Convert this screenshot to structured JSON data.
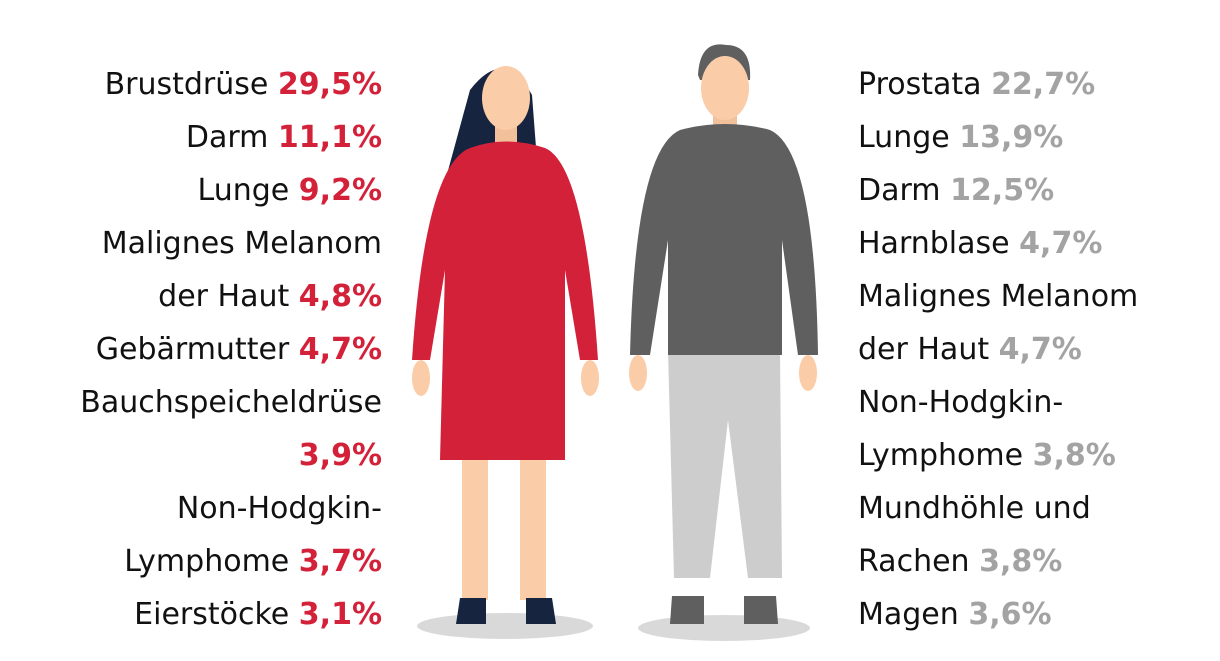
{
  "women": [
    {
      "label": [
        "Brustdrüse"
      ],
      "value": "29,5%"
    },
    {
      "label": [
        "Darm"
      ],
      "value": "11,1%"
    },
    {
      "label": [
        "Lunge"
      ],
      "value": "9,2%"
    },
    {
      "label": [
        "Malignes Melanom",
        "der Haut"
      ],
      "value": "4,8%"
    },
    {
      "label": [
        "Gebärmutter"
      ],
      "value": "4,7%"
    },
    {
      "label": [
        "Bauchspeicheldrüse"
      ],
      "value": "3,9%"
    },
    {
      "label": [
        "Non-Hodgkin-",
        "Lymphome"
      ],
      "value": "3,7%"
    },
    {
      "label": [
        "Eierstöcke"
      ],
      "value": "3,1%"
    }
  ],
  "men": [
    {
      "label": [
        "Prostata"
      ],
      "value": "22,7%"
    },
    {
      "label": [
        "Lunge"
      ],
      "value": "13,9%"
    },
    {
      "label": [
        "Darm"
      ],
      "value": "12,5%"
    },
    {
      "label": [
        "Harnblase"
      ],
      "value": "4,7%"
    },
    {
      "label": [
        "Malignes Melanom",
        "der Haut"
      ],
      "value": "4,7%"
    },
    {
      "label": [
        "Non-Hodgkin-",
        "Lymphome"
      ],
      "value": "3,8%"
    },
    {
      "label": [
        "Mundhöhle und",
        "Rachen"
      ],
      "value": "3,8%"
    },
    {
      "label": [
        "Magen"
      ],
      "value": "3,6%"
    }
  ]
}
